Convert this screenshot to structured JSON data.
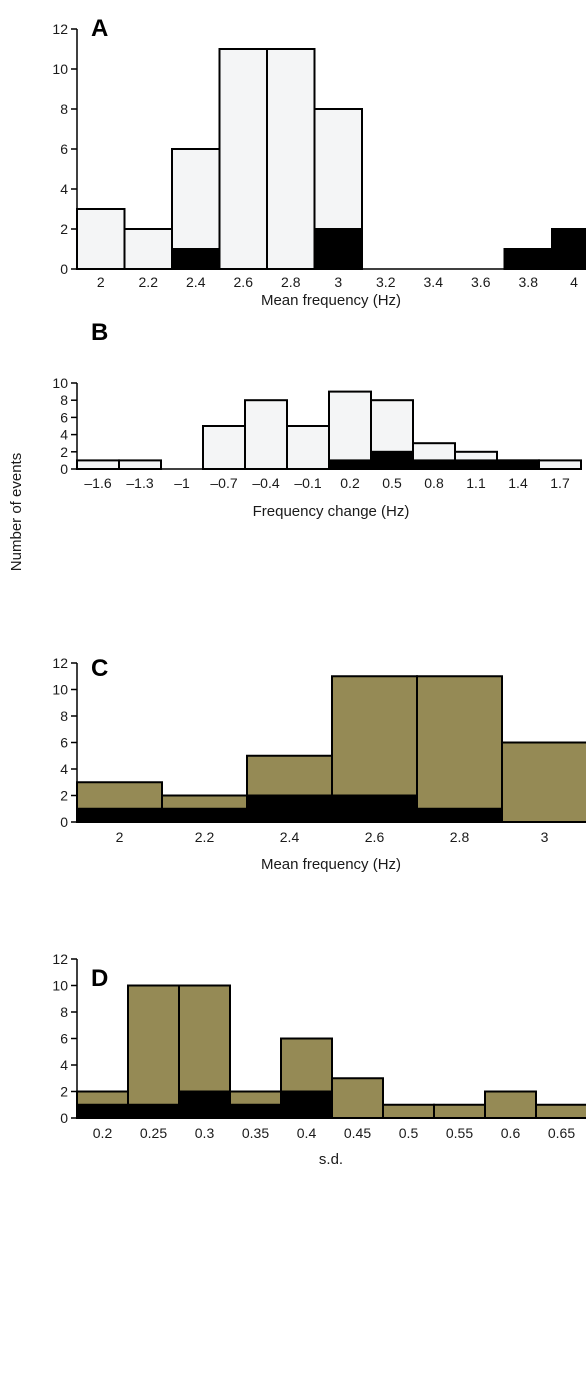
{
  "figure": {
    "ylabel": "Number of events"
  },
  "colors": {
    "light_fill": "#f4f5f6",
    "tan_fill": "#958a55",
    "black_fill": "#000000",
    "stroke": "#000000"
  },
  "chart_data": [
    {
      "panel": "A",
      "type": "bar",
      "style": "light",
      "xlabel": "Mean frequency (Hz)",
      "ylim": [
        0,
        12
      ],
      "yticks": [
        0,
        2,
        4,
        6,
        8,
        10,
        12
      ],
      "x_tick_labels": [
        "2",
        "2.2",
        "2.4",
        "2.6",
        "2.8",
        "3",
        "3.2",
        "3.4",
        "3.6",
        "3.8",
        "4"
      ],
      "series": [
        {
          "role": "total",
          "values": [
            3,
            2,
            6,
            11,
            11,
            8,
            0,
            0,
            0,
            1,
            2
          ]
        },
        {
          "role": "black",
          "values": [
            0,
            0,
            1,
            0,
            0,
            2,
            0,
            0,
            0,
            1,
            2
          ]
        }
      ]
    },
    {
      "panel": "B",
      "type": "bar",
      "style": "light",
      "xlabel": "Frequency change (Hz)",
      "ylim": [
        0,
        10
      ],
      "yticks": [
        0,
        2,
        4,
        6,
        8,
        10
      ],
      "x_tick_labels": [
        "–1.6",
        "–1.3",
        "–1",
        "–0.7",
        "–0.4",
        "–0.1",
        "0.2",
        "0.5",
        "0.8",
        "1.1",
        "1.4",
        "1.7"
      ],
      "series": [
        {
          "role": "total",
          "values": [
            1,
            1,
            0,
            5,
            8,
            5,
            9,
            8,
            3,
            2,
            1,
            1
          ]
        },
        {
          "role": "black",
          "values": [
            0,
            0,
            0,
            0,
            0,
            0,
            1,
            2,
            1,
            1,
            1,
            0
          ]
        }
      ]
    },
    {
      "panel": "C",
      "type": "bar",
      "style": "tan",
      "xlabel": "Mean frequency (Hz)",
      "ylim": [
        0,
        12
      ],
      "yticks": [
        0,
        2,
        4,
        6,
        8,
        10,
        12
      ],
      "x_tick_labels": [
        "2",
        "2.2",
        "2.4",
        "2.6",
        "2.8",
        "3"
      ],
      "series": [
        {
          "role": "total",
          "values": [
            3,
            2,
            5,
            11,
            11,
            6
          ]
        },
        {
          "role": "black",
          "values": [
            1,
            1,
            2,
            2,
            1,
            0
          ]
        }
      ]
    },
    {
      "panel": "D",
      "type": "bar",
      "style": "tan",
      "xlabel": "s.d.",
      "ylim": [
        0,
        12
      ],
      "yticks": [
        0,
        2,
        4,
        6,
        8,
        10,
        12
      ],
      "x_tick_labels": [
        "0.2",
        "0.25",
        "0.3",
        "0.35",
        "0.4",
        "0.45",
        "0.5",
        "0.55",
        "0.6",
        "0.65"
      ],
      "series": [
        {
          "role": "total",
          "values": [
            2,
            10,
            10,
            2,
            6,
            3,
            1,
            1,
            2,
            1
          ]
        },
        {
          "role": "black",
          "values": [
            1,
            1,
            2,
            1,
            2,
            0,
            0,
            0,
            0,
            0
          ]
        }
      ]
    }
  ]
}
